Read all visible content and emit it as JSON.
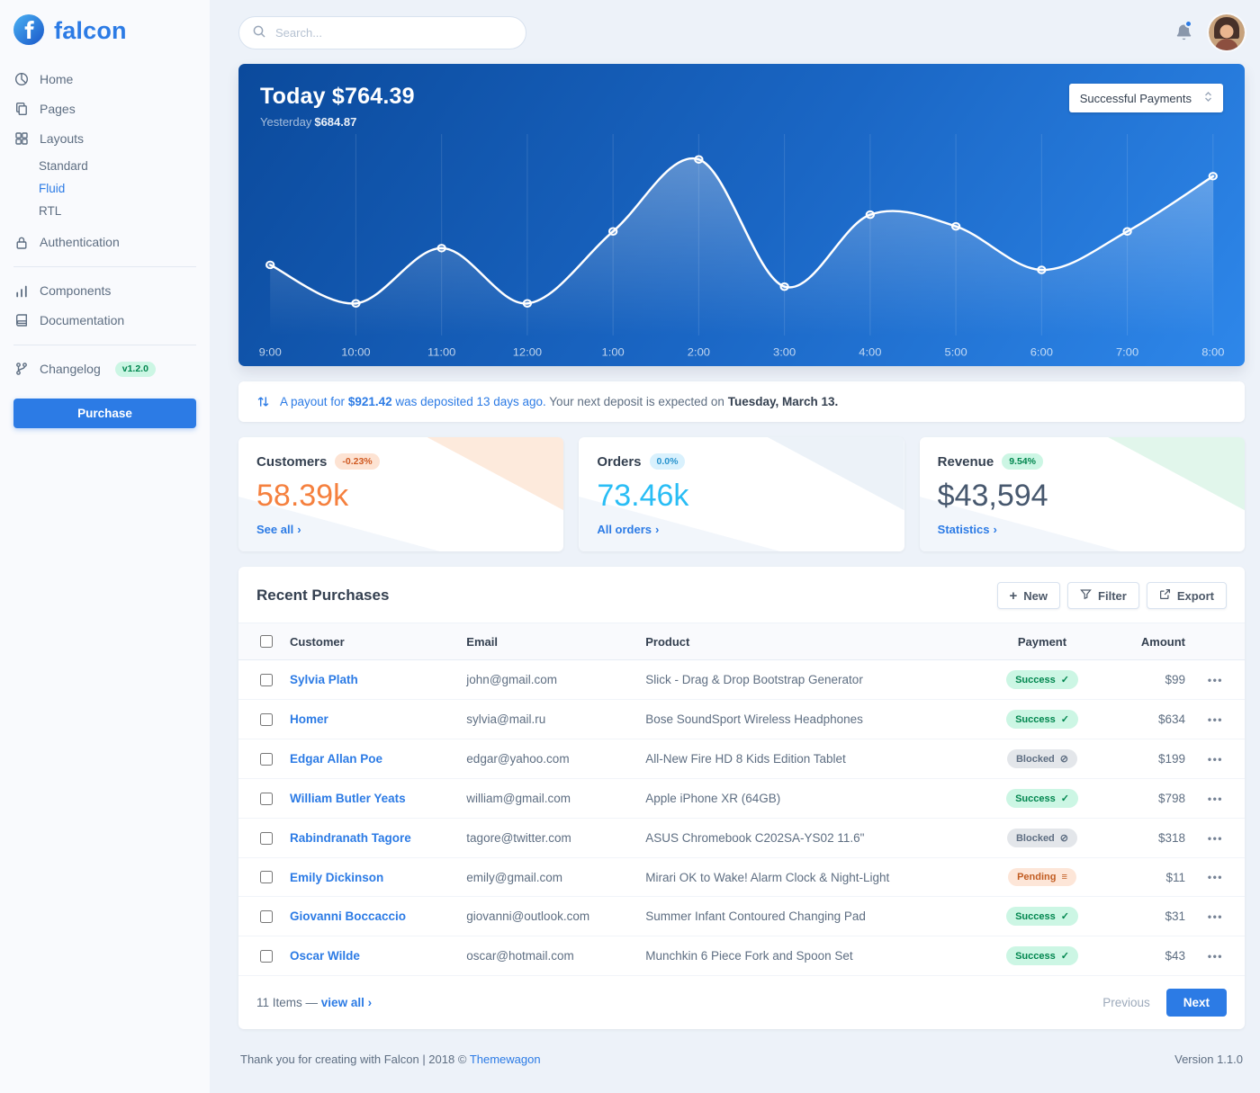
{
  "brand": {
    "name": "falcon"
  },
  "topbar": {
    "search_placeholder": "Search..."
  },
  "sidebar": {
    "items": [
      {
        "label": "Home",
        "icon": "pie-chart-icon"
      },
      {
        "label": "Pages",
        "icon": "pages-icon"
      },
      {
        "label": "Layouts",
        "icon": "layouts-icon",
        "children": [
          {
            "label": "Standard",
            "active": false
          },
          {
            "label": "Fluid",
            "active": true
          },
          {
            "label": "RTL",
            "active": false
          }
        ]
      },
      {
        "label": "Authentication",
        "icon": "lock-icon",
        "divider_after": true
      },
      {
        "label": "Components",
        "icon": "components-icon"
      },
      {
        "label": "Documentation",
        "icon": "documentation-icon",
        "divider_after": true
      },
      {
        "label": "Changelog",
        "icon": "changelog-icon",
        "badge": "v1.2.0"
      }
    ],
    "purchase_label": "Purchase"
  },
  "chart_card": {
    "title": "Today $764.39",
    "subtitle_label": "Yesterday",
    "subtitle_value": "$684.87",
    "select_value": "Successful Payments"
  },
  "chart_data": {
    "type": "line",
    "title": "Today $764.39",
    "subtitle": "Yesterday $684.87",
    "x_labels": [
      "9:00",
      "10:00",
      "11:00",
      "12:00",
      "1:00",
      "2:00",
      "3:00",
      "4:00",
      "5:00",
      "6:00",
      "7:00",
      "8:00"
    ],
    "values": [
      35,
      12,
      45,
      12,
      55,
      98,
      22,
      65,
      58,
      32,
      55,
      88
    ],
    "ylim": [
      0,
      105
    ],
    "line_color": "#ffffff",
    "background_gradient": [
      "#0b4a9c",
      "#2e87ea"
    ],
    "grid": "vertical",
    "legend": "none"
  },
  "payout": {
    "part1": "A payout for",
    "amount": "$921.42",
    "part2": "was deposited 13 days ago.",
    "part3": "Your next deposit is expected on",
    "date": "Tuesday, March 13."
  },
  "stats": [
    {
      "title": "Customers",
      "badge": "-0.23%",
      "value": "58.39k",
      "link_label": "See all"
    },
    {
      "title": "Orders",
      "badge": "0.0%",
      "value": "73.46k",
      "link_label": "All orders"
    },
    {
      "title": "Revenue",
      "badge": "9.54%",
      "value": "$43,594",
      "link_label": "Statistics"
    }
  ],
  "colors": {
    "primary": "#2c7be5",
    "customers_value": "#f5803e",
    "orders_value": "#29bdf5",
    "revenue_value": "#47586e",
    "success_badge_bg": "#ccf6e4",
    "success_badge_text": "#00864e",
    "secondary_badge_bg": "#e3e6ea",
    "warning_badge_bg": "#fde6d8"
  },
  "purchases": {
    "title": "Recent Purchases",
    "buttons": {
      "new": "New",
      "filter": "Filter",
      "export": "Export"
    },
    "columns": [
      "Customer",
      "Email",
      "Product",
      "Payment",
      "Amount"
    ],
    "rows": [
      {
        "customer": "Sylvia Plath",
        "email": "john@gmail.com",
        "product": "Slick - Drag & Drop Bootstrap Generator",
        "payment": "Success",
        "amount": "$99"
      },
      {
        "customer": "Homer",
        "email": "sylvia@mail.ru",
        "product": "Bose SoundSport Wireless Headphones",
        "payment": "Success",
        "amount": "$634"
      },
      {
        "customer": "Edgar Allan Poe",
        "email": "edgar@yahoo.com",
        "product": "All-New Fire HD 8 Kids Edition Tablet",
        "payment": "Blocked",
        "amount": "$199"
      },
      {
        "customer": "William Butler Yeats",
        "email": "william@gmail.com",
        "product": "Apple iPhone XR (64GB)",
        "payment": "Success",
        "amount": "$798"
      },
      {
        "customer": "Rabindranath Tagore",
        "email": "tagore@twitter.com",
        "product": "ASUS Chromebook C202SA-YS02 11.6\"",
        "payment": "Blocked",
        "amount": "$318"
      },
      {
        "customer": "Emily Dickinson",
        "email": "emily@gmail.com",
        "product": "Mirari OK to Wake! Alarm Clock & Night-Light",
        "payment": "Pending",
        "amount": "$11"
      },
      {
        "customer": "Giovanni Boccaccio",
        "email": "giovanni@outlook.com",
        "product": "Summer Infant Contoured Changing Pad",
        "payment": "Success",
        "amount": "$31"
      },
      {
        "customer": "Oscar Wilde",
        "email": "oscar@hotmail.com",
        "product": "Munchkin 6 Piece Fork and Spoon Set",
        "payment": "Success",
        "amount": "$43"
      }
    ],
    "footer": {
      "items_label": "11 Items —",
      "view_all": "view all",
      "previous": "Previous",
      "next": "Next"
    }
  },
  "page_footer": {
    "thanks": "Thank you for creating with Falcon | 2018 ©",
    "link": "Themewagon",
    "version": "Version 1.1.0"
  }
}
